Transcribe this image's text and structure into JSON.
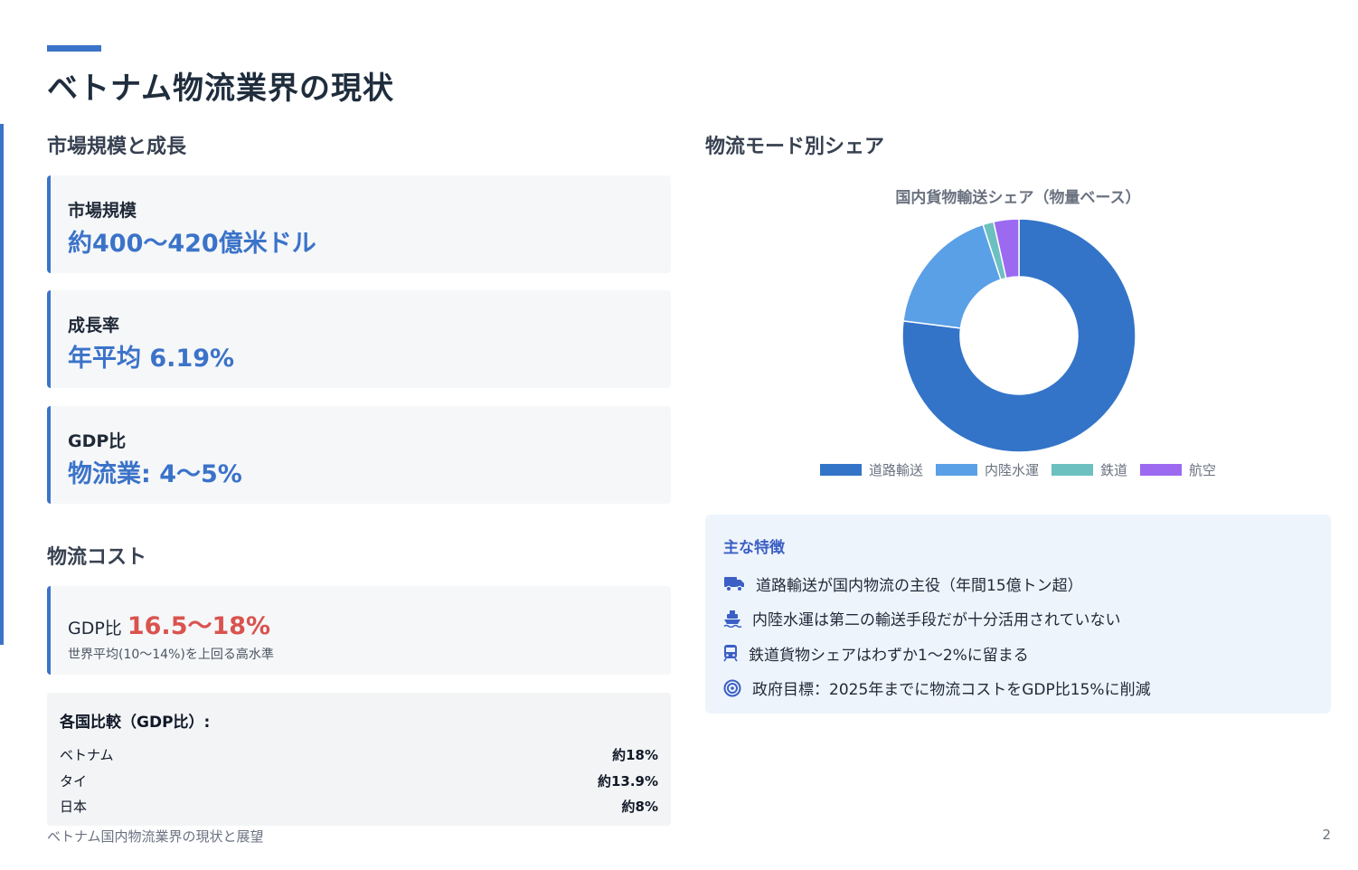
{
  "page": {
    "title": "ベトナム物流業界の現状",
    "footer": "ベトナム国内物流業界の現状と展望",
    "page_number": "2"
  },
  "market": {
    "heading": "市場規模と成長",
    "cards": [
      {
        "label": "市場規模",
        "value": "約400〜420億米ドル"
      },
      {
        "label": "成長率",
        "value": "年平均 6.19%"
      },
      {
        "label": "GDP比",
        "value": "物流業: 4〜5%"
      }
    ]
  },
  "cost": {
    "heading": "物流コスト",
    "prefix": "GDP比",
    "value": "16.5〜18%",
    "note": "世界平均(10〜14%)を上回る高水準",
    "compare_title": "各国比較（GDP比）:",
    "compare": [
      {
        "country": "ベトナム",
        "value": "約18%"
      },
      {
        "country": "タイ",
        "value": "約13.9%"
      },
      {
        "country": "日本",
        "value": "約8%"
      }
    ]
  },
  "modes": {
    "heading": "物流モード別シェア"
  },
  "chart_data": {
    "type": "pie",
    "title": "国内貨物輸送シェア（物量ベース）",
    "labels": [
      "道路輸送",
      "内陸水運",
      "鉄道",
      "航空"
    ],
    "values": [
      77,
      18,
      1.5,
      3.5
    ],
    "colors": [
      "#3374c8",
      "#5aa0e6",
      "#6cc0c0",
      "#9b6af0"
    ],
    "donut": true,
    "legend": "bottom"
  },
  "features": {
    "title": "主な特徴",
    "items": [
      {
        "icon": "truck-icon",
        "text": "道路輸送が国内物流の主役（年間15億トン超）"
      },
      {
        "icon": "ship-icon",
        "text": "内陸水運は第二の輸送手段だが十分活用されていない"
      },
      {
        "icon": "train-icon",
        "text": "鉄道貨物シェアはわずか1〜2%に留まる"
      },
      {
        "icon": "target-icon",
        "text": "政府目標：2025年までに物流コストをGDP比15%に削減"
      }
    ]
  }
}
